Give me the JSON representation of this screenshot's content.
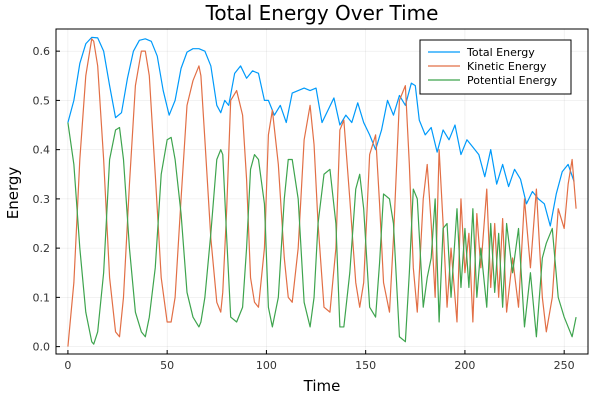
{
  "chart_data": {
    "type": "line",
    "title": "Total Energy Over Time",
    "xlabel": "Time",
    "ylabel": "Energy",
    "xlim": [
      -6,
      262
    ],
    "ylim": [
      -0.015,
      0.645
    ],
    "xticks": [
      0,
      50,
      100,
      150,
      200,
      250
    ],
    "xtick_labels": [
      "0",
      "50",
      "100",
      "150",
      "200",
      "250"
    ],
    "yticks": [
      0.0,
      0.1,
      0.2,
      0.3,
      0.4,
      0.5,
      0.6
    ],
    "ytick_labels": [
      "0.0",
      "0.1",
      "0.2",
      "0.3",
      "0.4",
      "0.5",
      "0.6"
    ],
    "grid": true,
    "legend_position": "top-right",
    "series": [
      {
        "name": "Total Energy",
        "color": "#009AFA",
        "x": [
          0,
          3,
          6,
          9,
          12,
          15,
          18,
          21,
          24,
          27,
          30,
          33,
          36,
          39,
          42,
          45,
          48,
          51,
          54,
          57,
          60,
          63,
          66,
          69,
          72,
          75,
          77,
          79,
          81,
          84,
          87,
          90,
          93,
          96,
          99,
          101,
          104,
          107,
          110,
          113,
          116,
          119,
          122,
          125,
          128,
          131,
          134,
          137,
          140,
          143,
          146,
          149,
          152,
          155,
          158,
          161,
          164,
          167,
          170,
          173,
          175,
          177,
          180,
          183,
          186,
          189,
          192,
          195,
          198,
          201,
          204,
          207,
          210,
          213,
          216,
          219,
          222,
          225,
          228,
          231,
          234,
          237,
          240,
          243,
          246,
          249,
          252,
          255
        ],
        "y": [
          0.455,
          0.5,
          0.575,
          0.615,
          0.628,
          0.627,
          0.6,
          0.53,
          0.465,
          0.475,
          0.545,
          0.6,
          0.622,
          0.625,
          0.62,
          0.59,
          0.52,
          0.47,
          0.5,
          0.565,
          0.598,
          0.605,
          0.605,
          0.6,
          0.57,
          0.49,
          0.475,
          0.5,
          0.49,
          0.555,
          0.57,
          0.545,
          0.56,
          0.555,
          0.5,
          0.5,
          0.47,
          0.49,
          0.455,
          0.515,
          0.52,
          0.525,
          0.52,
          0.525,
          0.455,
          0.48,
          0.505,
          0.45,
          0.47,
          0.455,
          0.495,
          0.455,
          0.43,
          0.4,
          0.44,
          0.5,
          0.47,
          0.51,
          0.49,
          0.535,
          0.53,
          0.46,
          0.43,
          0.445,
          0.395,
          0.44,
          0.42,
          0.45,
          0.39,
          0.42,
          0.405,
          0.39,
          0.345,
          0.4,
          0.33,
          0.37,
          0.325,
          0.36,
          0.34,
          0.29,
          0.315,
          0.3,
          0.29,
          0.245,
          0.31,
          0.355,
          0.37,
          0.335
        ]
      },
      {
        "name": "Kinetic Energy",
        "color": "#E26F46",
        "x": [
          0,
          3,
          6,
          9,
          12,
          13,
          15,
          18,
          21,
          24,
          26,
          28,
          31,
          34,
          37,
          39,
          41,
          44,
          47,
          50,
          52,
          54,
          57,
          60,
          63,
          66,
          67,
          69,
          72,
          75,
          77,
          78,
          80,
          82,
          85,
          88,
          90,
          92,
          94,
          96,
          99,
          101,
          103,
          106,
          109,
          111,
          113,
          116,
          119,
          122,
          124,
          126,
          129,
          132,
          135,
          137,
          139,
          142,
          145,
          147,
          149,
          152,
          155,
          157,
          159,
          162,
          164,
          167,
          170,
          172,
          174,
          176,
          179,
          181,
          183,
          185,
          187,
          189,
          191,
          193,
          196,
          198,
          200,
          202,
          204,
          206,
          208,
          211,
          213,
          215,
          217,
          219,
          221,
          224,
          227,
          230,
          233,
          236,
          239,
          241,
          244,
          247,
          250,
          252,
          254,
          256
        ],
        "y": [
          0.0,
          0.13,
          0.38,
          0.55,
          0.625,
          0.62,
          0.57,
          0.38,
          0.14,
          0.03,
          0.02,
          0.1,
          0.33,
          0.53,
          0.6,
          0.6,
          0.55,
          0.35,
          0.14,
          0.05,
          0.05,
          0.1,
          0.3,
          0.49,
          0.54,
          0.57,
          0.55,
          0.42,
          0.22,
          0.09,
          0.07,
          0.11,
          0.28,
          0.5,
          0.52,
          0.47,
          0.34,
          0.14,
          0.09,
          0.08,
          0.2,
          0.43,
          0.48,
          0.37,
          0.18,
          0.1,
          0.09,
          0.2,
          0.42,
          0.49,
          0.41,
          0.25,
          0.08,
          0.07,
          0.2,
          0.44,
          0.46,
          0.3,
          0.13,
          0.08,
          0.13,
          0.39,
          0.43,
          0.29,
          0.13,
          0.07,
          0.22,
          0.5,
          0.53,
          0.37,
          0.16,
          0.07,
          0.3,
          0.37,
          0.25,
          0.1,
          0.4,
          0.25,
          0.08,
          0.2,
          0.05,
          0.3,
          0.15,
          0.23,
          0.05,
          0.27,
          0.16,
          0.32,
          0.12,
          0.25,
          0.1,
          0.26,
          0.07,
          0.18,
          0.08,
          0.3,
          0.16,
          0.32,
          0.1,
          0.03,
          0.1,
          0.28,
          0.24,
          0.33,
          0.38,
          0.28
        ]
      },
      {
        "name": "Potential Energy",
        "color": "#3EA44E",
        "x": [
          0,
          3,
          6,
          9,
          12,
          13,
          15,
          18,
          21,
          24,
          26,
          28,
          31,
          34,
          37,
          39,
          41,
          44,
          47,
          50,
          52,
          54,
          57,
          60,
          63,
          66,
          67,
          69,
          72,
          75,
          77,
          78,
          80,
          82,
          85,
          88,
          90,
          92,
          94,
          96,
          99,
          101,
          103,
          106,
          109,
          111,
          113,
          116,
          119,
          122,
          124,
          126,
          129,
          132,
          135,
          137,
          139,
          142,
          145,
          147,
          149,
          152,
          155,
          157,
          159,
          162,
          164,
          167,
          170,
          172,
          174,
          176,
          179,
          181,
          183,
          185,
          187,
          189,
          191,
          193,
          196,
          198,
          200,
          202,
          204,
          206,
          208,
          211,
          213,
          215,
          217,
          219,
          221,
          224,
          227,
          230,
          233,
          236,
          239,
          241,
          244,
          247,
          250,
          252,
          254,
          256
        ],
        "y": [
          0.455,
          0.37,
          0.2,
          0.07,
          0.01,
          0.005,
          0.03,
          0.15,
          0.38,
          0.44,
          0.445,
          0.38,
          0.2,
          0.07,
          0.03,
          0.02,
          0.06,
          0.16,
          0.35,
          0.42,
          0.425,
          0.38,
          0.27,
          0.11,
          0.06,
          0.04,
          0.05,
          0.1,
          0.23,
          0.38,
          0.4,
          0.39,
          0.22,
          0.06,
          0.05,
          0.08,
          0.2,
          0.36,
          0.39,
          0.38,
          0.29,
          0.08,
          0.04,
          0.1,
          0.3,
          0.38,
          0.38,
          0.3,
          0.09,
          0.04,
          0.1,
          0.25,
          0.35,
          0.36,
          0.25,
          0.04,
          0.04,
          0.15,
          0.32,
          0.35,
          0.28,
          0.08,
          0.06,
          0.17,
          0.31,
          0.3,
          0.25,
          0.02,
          0.01,
          0.15,
          0.32,
          0.3,
          0.08,
          0.14,
          0.18,
          0.3,
          0.05,
          0.24,
          0.25,
          0.1,
          0.28,
          0.12,
          0.24,
          0.12,
          0.28,
          0.1,
          0.2,
          0.08,
          0.25,
          0.11,
          0.23,
          0.08,
          0.25,
          0.15,
          0.24,
          0.04,
          0.15,
          0.02,
          0.18,
          0.21,
          0.24,
          0.1,
          0.06,
          0.04,
          0.02,
          0.06
        ]
      }
    ]
  }
}
